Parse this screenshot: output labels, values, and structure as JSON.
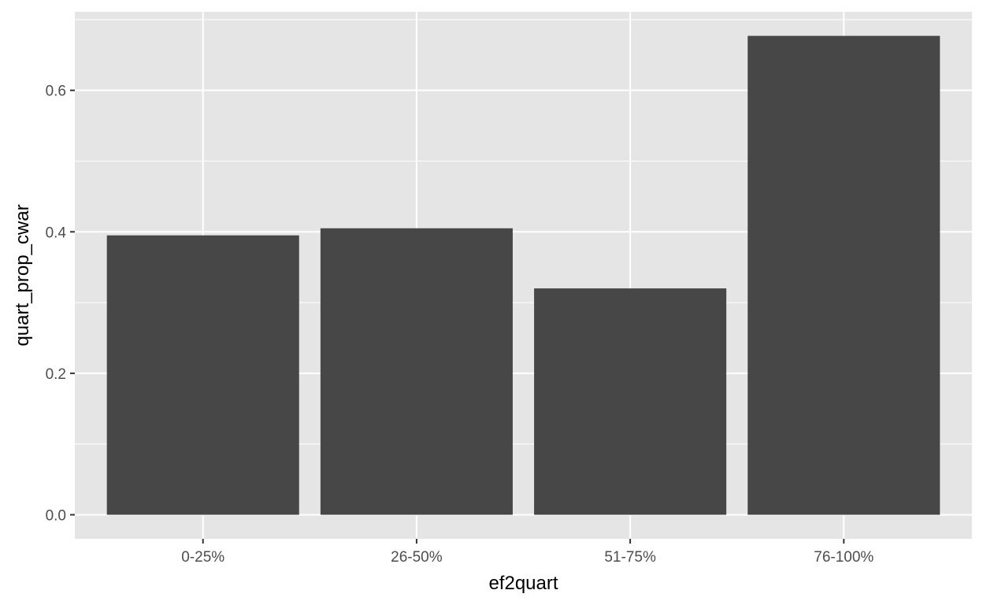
{
  "chart_data": {
    "type": "bar",
    "title": "",
    "xlabel": "ef2quart",
    "ylabel": "quart_prop_cwar",
    "categories": [
      "0-25%",
      "26-50%",
      "51-75%",
      "76-100%"
    ],
    "values": [
      0.395,
      0.405,
      0.32,
      0.677
    ],
    "ylim": [
      -0.034,
      0.711
    ],
    "yticks": [
      0.0,
      0.2,
      0.4,
      0.6
    ],
    "ytick_labels": [
      "0.0",
      "0.2",
      "0.4",
      "0.6"
    ],
    "grid": true,
    "legend": "none",
    "colors": {
      "panel_background": "#e5e5e5",
      "grid": "#ffffff",
      "bar_fill": "#474747",
      "tick_label": "#4d4d4d",
      "tick_mark": "#333333",
      "axis_title": "#000000"
    }
  }
}
